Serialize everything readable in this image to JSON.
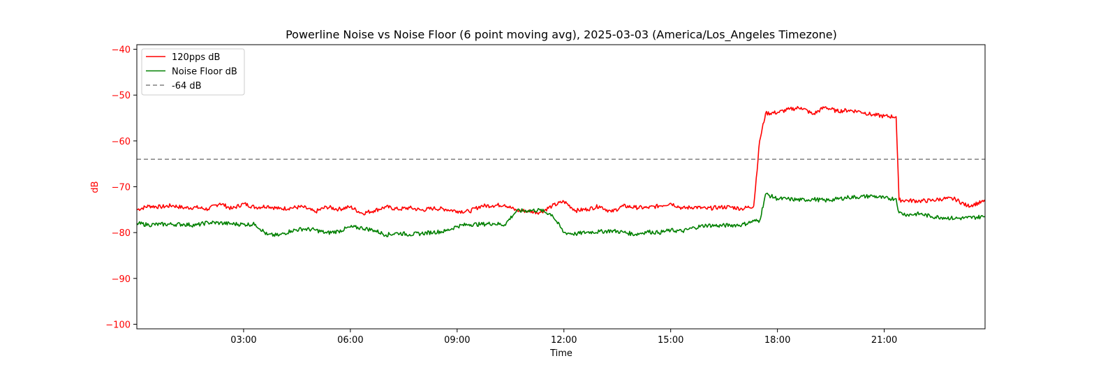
{
  "chart_data": {
    "type": "line",
    "title": "Powerline Noise vs Noise Floor (6 point moving avg), 2025-03-03 (America/Los_Angeles Timezone)",
    "xlabel": "Time",
    "ylabel": "dB",
    "xlim": [
      "00:00",
      "23:50"
    ],
    "ylim": [
      -101,
      -39
    ],
    "x_ticks": [
      "03:00",
      "06:00",
      "09:00",
      "12:00",
      "15:00",
      "18:00",
      "21:00"
    ],
    "y_ticks": [
      -40,
      -50,
      -60,
      -70,
      -80,
      -90,
      -100
    ],
    "grid": false,
    "legend_position": "upper-left",
    "ylabel_color": "#ff0000",
    "series": [
      {
        "name": "120pps dB",
        "color": "#ff0000",
        "points": [
          [
            "00:00",
            -75
          ],
          [
            "00:20",
            -74.2
          ],
          [
            "00:40",
            -74.4
          ],
          [
            "01:00",
            -74.1
          ],
          [
            "01:20",
            -74.6
          ],
          [
            "01:40",
            -74.5
          ],
          [
            "02:00",
            -74.9
          ],
          [
            "02:20",
            -73.6
          ],
          [
            "02:40",
            -74.8
          ],
          [
            "03:00",
            -73.7
          ],
          [
            "03:20",
            -74.5
          ],
          [
            "03:40",
            -74.2
          ],
          [
            "04:00",
            -74.8
          ],
          [
            "04:20",
            -74.6
          ],
          [
            "04:40",
            -74.4
          ],
          [
            "05:00",
            -75.5
          ],
          [
            "05:20",
            -74.4
          ],
          [
            "05:40",
            -74.9
          ],
          [
            "06:00",
            -74.4
          ],
          [
            "06:20",
            -75.8
          ],
          [
            "06:40",
            -75.2
          ],
          [
            "07:00",
            -74.4
          ],
          [
            "07:20",
            -74.9
          ],
          [
            "07:40",
            -74.6
          ],
          [
            "08:00",
            -75.1
          ],
          [
            "08:20",
            -74.7
          ],
          [
            "08:40",
            -74.9
          ],
          [
            "09:00",
            -75.3
          ],
          [
            "09:20",
            -75.4
          ],
          [
            "09:40",
            -74.2
          ],
          [
            "10:00",
            -74.1
          ],
          [
            "10:20",
            -73.9
          ],
          [
            "10:40",
            -75.2
          ],
          [
            "11:00",
            -75.3
          ],
          [
            "11:20",
            -75.6
          ],
          [
            "11:40",
            -74.2
          ],
          [
            "12:00",
            -73.2
          ],
          [
            "12:20",
            -75.2
          ],
          [
            "12:40",
            -74.9
          ],
          [
            "13:00",
            -74.2
          ],
          [
            "13:20",
            -75.5
          ],
          [
            "13:40",
            -74.2
          ],
          [
            "14:00",
            -74.5
          ],
          [
            "14:20",
            -74.6
          ],
          [
            "14:40",
            -74.2
          ],
          [
            "15:00",
            -73.6
          ],
          [
            "15:20",
            -74.7
          ],
          [
            "15:40",
            -74.4
          ],
          [
            "16:00",
            -74.8
          ],
          [
            "16:20",
            -74.5
          ],
          [
            "16:40",
            -74.4
          ],
          [
            "17:00",
            -74.8
          ],
          [
            "17:20",
            -74.2
          ],
          [
            "17:30",
            -60.0
          ],
          [
            "17:40",
            -54.0
          ],
          [
            "18:00",
            -53.8
          ],
          [
            "18:20",
            -53.1
          ],
          [
            "18:40",
            -52.7
          ],
          [
            "19:00",
            -54.2
          ],
          [
            "19:20",
            -52.6
          ],
          [
            "19:40",
            -53.5
          ],
          [
            "20:00",
            -53.3
          ],
          [
            "20:20",
            -53.6
          ],
          [
            "20:40",
            -54.3
          ],
          [
            "21:00",
            -54.6
          ],
          [
            "21:20",
            -54.7
          ],
          [
            "21:25",
            -72.9
          ],
          [
            "21:40",
            -73.0
          ],
          [
            "22:00",
            -73.1
          ],
          [
            "22:20",
            -73.0
          ],
          [
            "22:40",
            -72.6
          ],
          [
            "23:00",
            -72.7
          ],
          [
            "23:20",
            -74.2
          ],
          [
            "23:50",
            -73.2
          ]
        ]
      },
      {
        "name": "Noise Floor dB",
        "color": "#008000",
        "points": [
          [
            "00:00",
            -78
          ],
          [
            "00:20",
            -78.3
          ],
          [
            "00:40",
            -78.2
          ],
          [
            "01:00",
            -78.2
          ],
          [
            "01:20",
            -78.2
          ],
          [
            "01:40",
            -78.4
          ],
          [
            "02:00",
            -77.8
          ],
          [
            "02:20",
            -77.9
          ],
          [
            "02:40",
            -78.1
          ],
          [
            "03:00",
            -78.2
          ],
          [
            "03:20",
            -78.2
          ],
          [
            "03:40",
            -80.5
          ],
          [
            "04:00",
            -80.6
          ],
          [
            "04:20",
            -79.6
          ],
          [
            "04:40",
            -79.2
          ],
          [
            "05:00",
            -79.4
          ],
          [
            "05:20",
            -80.1
          ],
          [
            "05:40",
            -79.7
          ],
          [
            "06:00",
            -78.8
          ],
          [
            "06:20",
            -79.0
          ],
          [
            "06:40",
            -79.5
          ],
          [
            "07:00",
            -80.5
          ],
          [
            "07:20",
            -80.1
          ],
          [
            "07:40",
            -80.4
          ],
          [
            "08:00",
            -80.2
          ],
          [
            "08:20",
            -79.9
          ],
          [
            "08:40",
            -79.7
          ],
          [
            "09:00",
            -78.6
          ],
          [
            "09:20",
            -78.2
          ],
          [
            "09:40",
            -78.2
          ],
          [
            "10:00",
            -78.0
          ],
          [
            "10:20",
            -78.3
          ],
          [
            "10:40",
            -75.3
          ],
          [
            "11:00",
            -75.2
          ],
          [
            "11:20",
            -75.1
          ],
          [
            "11:40",
            -76.1
          ],
          [
            "12:00",
            -80.0
          ],
          [
            "12:20",
            -80.3
          ],
          [
            "12:40",
            -79.9
          ],
          [
            "13:00",
            -79.8
          ],
          [
            "13:20",
            -79.6
          ],
          [
            "13:40",
            -79.9
          ],
          [
            "14:00",
            -80.4
          ],
          [
            "14:20",
            -79.8
          ],
          [
            "14:40",
            -80.0
          ],
          [
            "15:00",
            -79.5
          ],
          [
            "15:20",
            -79.7
          ],
          [
            "15:40",
            -78.9
          ],
          [
            "16:00",
            -78.4
          ],
          [
            "16:20",
            -78.5
          ],
          [
            "16:40",
            -78.4
          ],
          [
            "17:00",
            -78.3
          ],
          [
            "17:20",
            -77.5
          ],
          [
            "17:30",
            -77.4
          ],
          [
            "17:40",
            -71.6
          ],
          [
            "18:00",
            -72.6
          ],
          [
            "18:20",
            -72.7
          ],
          [
            "18:40",
            -72.9
          ],
          [
            "19:00",
            -72.7
          ],
          [
            "19:20",
            -73.0
          ],
          [
            "19:40",
            -72.7
          ],
          [
            "20:00",
            -72.3
          ],
          [
            "20:20",
            -72.2
          ],
          [
            "20:40",
            -72.0
          ],
          [
            "21:00",
            -72.5
          ],
          [
            "21:20",
            -72.6
          ],
          [
            "21:25",
            -75.7
          ],
          [
            "21:40",
            -76.1
          ],
          [
            "22:00",
            -75.9
          ],
          [
            "22:20",
            -76.5
          ],
          [
            "22:40",
            -76.7
          ],
          [
            "23:00",
            -76.9
          ],
          [
            "23:20",
            -76.8
          ],
          [
            "23:50",
            -76.5
          ]
        ]
      },
      {
        "name": "-64 dB",
        "color": "#808080",
        "style": "dashed",
        "constant": -64
      }
    ]
  }
}
